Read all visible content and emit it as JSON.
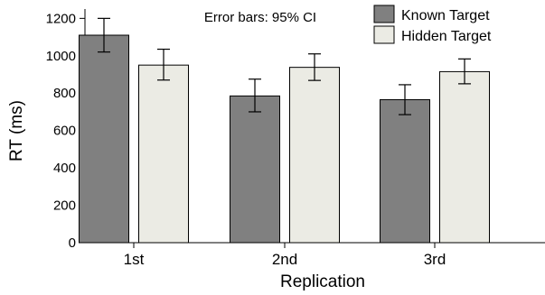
{
  "chart_data": {
    "type": "bar",
    "title": "",
    "xlabel": "Replication",
    "ylabel": "RT (ms)",
    "categories": [
      "1st",
      "2nd",
      "3rd"
    ],
    "ylim": [
      0,
      1250
    ],
    "yticks": [
      0,
      200,
      400,
      600,
      800,
      1000,
      1200
    ],
    "series": [
      {
        "name": "Known Target",
        "color": "#808080",
        "values": [
          1110,
          785,
          765
        ],
        "ci_low": [
          1020,
          700,
          685
        ],
        "ci_high": [
          1200,
          875,
          845
        ]
      },
      {
        "name": "Hidden Target",
        "color": "#ebebe4",
        "values": [
          950,
          938,
          915
        ],
        "ci_low": [
          870,
          868,
          850
        ],
        "ci_high": [
          1035,
          1010,
          983
        ]
      }
    ],
    "annotation": "Error bars: 95% CI",
    "legend_position": "top-right",
    "grid": false
  }
}
